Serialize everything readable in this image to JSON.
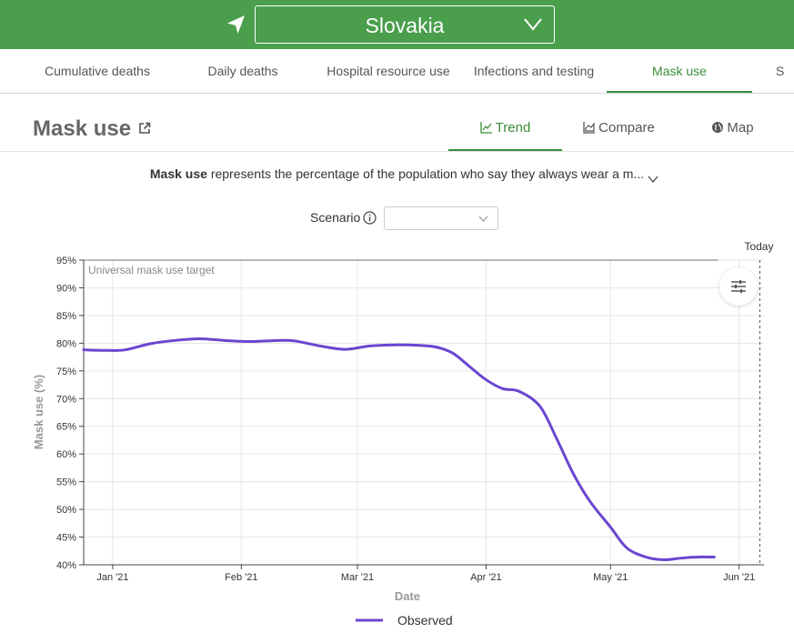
{
  "header": {
    "location_icon": "navigation-arrow-icon",
    "country": "Slovakia",
    "dropdown_icon": "chevron-down-icon"
  },
  "nav": {
    "tabs": [
      {
        "label": "Cumulative deaths",
        "active": false
      },
      {
        "label": "Daily deaths",
        "active": false
      },
      {
        "label": "Hospital resource use",
        "active": false
      },
      {
        "label": "Infections and testing",
        "active": false
      },
      {
        "label": "Mask use",
        "active": true
      },
      {
        "label": "S",
        "active": false
      }
    ]
  },
  "section": {
    "title": "Mask use",
    "external_icon": "external-link-icon",
    "views": [
      {
        "label": "Trend",
        "icon": "line-chart-icon",
        "active": true
      },
      {
        "label": "Compare",
        "icon": "area-chart-icon",
        "active": false
      },
      {
        "label": "Map",
        "icon": "globe-icon",
        "active": false
      }
    ]
  },
  "description": {
    "bold": "Mask use",
    "text": " represents the percentage of the population who say they always wear a m..."
  },
  "scenario": {
    "label": "Scenario",
    "value": ""
  },
  "colors": {
    "brand_green": "#4a9e4c",
    "active_tab": "#3a8d3c",
    "series_observed": "#6b46d0"
  },
  "chart_data": {
    "type": "line",
    "xlabel": "Date",
    "ylabel": "Mask use (%)",
    "ylim": [
      40,
      95
    ],
    "yticks": [
      "95%",
      "90%",
      "85%",
      "80%",
      "75%",
      "70%",
      "65%",
      "60%",
      "55%",
      "50%",
      "45%",
      "40%"
    ],
    "xticks": [
      {
        "date": "2021-01-01",
        "label": "Jan '21"
      },
      {
        "date": "2021-02-01",
        "label": "Feb '21"
      },
      {
        "date": "2021-03-01",
        "label": "Mar '21"
      },
      {
        "date": "2021-04-01",
        "label": "Apr '21"
      },
      {
        "date": "2021-05-01",
        "label": "May '21"
      },
      {
        "date": "2021-06-01",
        "label": "Jun '21"
      }
    ],
    "xrange": [
      "2020-12-25",
      "2021-06-07"
    ],
    "grid": true,
    "legend_position": "bottom",
    "target": {
      "value": 95,
      "label": "Universal mask use target"
    },
    "today": {
      "date": "2021-06-06",
      "label": "Today"
    },
    "series": [
      {
        "name": "Observed",
        "x": [
          "2020-12-25",
          "2020-12-31",
          "2021-01-04",
          "2021-01-10",
          "2021-01-16",
          "2021-01-22",
          "2021-01-28",
          "2021-02-03",
          "2021-02-10",
          "2021-02-14",
          "2021-02-20",
          "2021-02-26",
          "2021-03-04",
          "2021-03-10",
          "2021-03-16",
          "2021-03-20",
          "2021-03-24",
          "2021-03-28",
          "2021-04-01",
          "2021-04-05",
          "2021-04-09",
          "2021-04-14",
          "2021-04-18",
          "2021-04-22",
          "2021-04-26",
          "2021-05-01",
          "2021-05-05",
          "2021-05-10",
          "2021-05-14",
          "2021-05-18",
          "2021-05-22",
          "2021-05-26"
        ],
        "y": [
          78.8,
          78.7,
          78.8,
          79.9,
          80.5,
          80.8,
          80.5,
          80.3,
          80.5,
          80.4,
          79.5,
          78.9,
          79.5,
          79.7,
          79.6,
          79.3,
          78.2,
          75.8,
          73.4,
          71.8,
          71.3,
          68.6,
          62.8,
          56.5,
          51.5,
          46.8,
          43.0,
          41.3,
          40.9,
          41.2,
          41.4,
          41.4
        ]
      }
    ]
  }
}
